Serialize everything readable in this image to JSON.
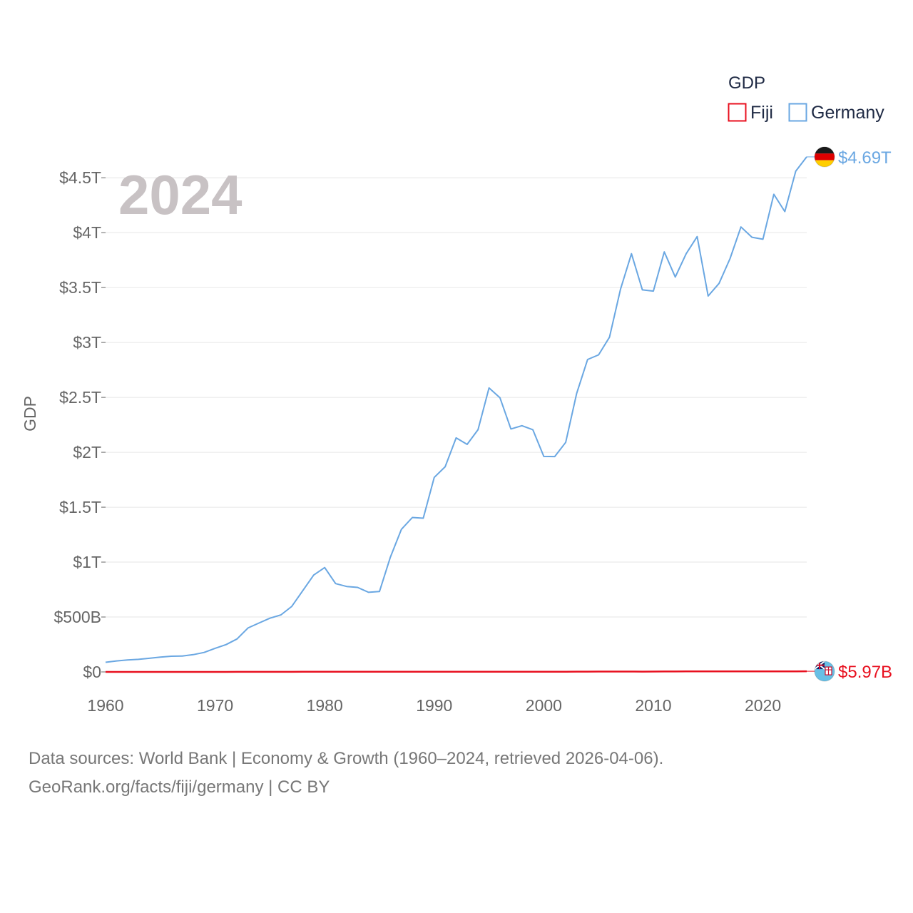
{
  "chart_data": {
    "type": "line",
    "ylabel": "GDP",
    "xlabel": "",
    "year_label": "2024",
    "xlim": [
      1960,
      2024
    ],
    "ylim": [
      0,
      4.8
    ],
    "x_ticks": [
      1960,
      1970,
      1980,
      1990,
      2000,
      2010,
      2020
    ],
    "y_ticks": [
      {
        "value": 0,
        "label": "$0"
      },
      {
        "value": 0.5,
        "label": "$500B"
      },
      {
        "value": 1,
        "label": "$1T"
      },
      {
        "value": 1.5,
        "label": "$1.5T"
      },
      {
        "value": 2,
        "label": "$2T"
      },
      {
        "value": 2.5,
        "label": "$2.5T"
      },
      {
        "value": 3,
        "label": "$3T"
      },
      {
        "value": 3.5,
        "label": "$3.5T"
      },
      {
        "value": 4,
        "label": "$4T"
      },
      {
        "value": 4.5,
        "label": "$4.5T"
      }
    ],
    "legend": {
      "title": "GDP",
      "placement": "top-right"
    },
    "grid": true,
    "value_units": "trillions USD",
    "x": [
      1960,
      1961,
      1962,
      1963,
      1964,
      1965,
      1966,
      1967,
      1968,
      1969,
      1970,
      1971,
      1972,
      1973,
      1974,
      1975,
      1976,
      1977,
      1978,
      1979,
      1980,
      1981,
      1982,
      1983,
      1984,
      1985,
      1986,
      1987,
      1988,
      1989,
      1990,
      1991,
      1992,
      1993,
      1994,
      1995,
      1996,
      1997,
      1998,
      1999,
      2000,
      2001,
      2002,
      2003,
      2004,
      2005,
      2006,
      2007,
      2008,
      2009,
      2010,
      2011,
      2012,
      2013,
      2014,
      2015,
      2016,
      2017,
      2018,
      2019,
      2020,
      2021,
      2022,
      2023,
      2024
    ],
    "series": [
      {
        "name": "Fiji",
        "color": "#e8101f",
        "end_label": "$5.97B",
        "flag": "fiji-flag",
        "values": [
          0.0001,
          0.0001,
          0.0001,
          0.0001,
          0.0002,
          0.0002,
          0.0002,
          0.0002,
          0.0002,
          0.0002,
          0.0002,
          0.0003,
          0.0004,
          0.0005,
          0.0007,
          0.0009,
          0.0009,
          0.0009,
          0.001,
          0.0011,
          0.0012,
          0.0012,
          0.0012,
          0.0011,
          0.0012,
          0.0011,
          0.0012,
          0.0011,
          0.0011,
          0.0012,
          0.0013,
          0.0014,
          0.0015,
          0.0016,
          0.0017,
          0.0019,
          0.0021,
          0.0021,
          0.0017,
          0.002,
          0.0017,
          0.0017,
          0.0019,
          0.0023,
          0.0027,
          0.003,
          0.0032,
          0.0034,
          0.0035,
          0.0029,
          0.0032,
          0.0037,
          0.0039,
          0.0043,
          0.0045,
          0.0045,
          0.0047,
          0.005,
          0.0055,
          0.0054,
          0.0045,
          0.0043,
          0.005,
          0.0054,
          0.00597
        ]
      },
      {
        "name": "Germany",
        "color": "#6aa7e2",
        "end_label": "$4.69T",
        "flag": "germany-flag",
        "values": [
          0.088,
          0.1,
          0.109,
          0.114,
          0.124,
          0.135,
          0.143,
          0.145,
          0.157,
          0.177,
          0.215,
          0.249,
          0.3,
          0.4,
          0.445,
          0.489,
          0.519,
          0.597,
          0.74,
          0.882,
          0.95,
          0.804,
          0.778,
          0.77,
          0.725,
          0.732,
          1.045,
          1.298,
          1.406,
          1.4,
          1.771,
          1.868,
          2.131,
          2.072,
          2.206,
          2.586,
          2.497,
          2.212,
          2.242,
          2.206,
          1.962,
          1.961,
          2.09,
          2.537,
          2.845,
          2.887,
          3.048,
          3.484,
          3.808,
          3.479,
          3.468,
          3.825,
          3.596,
          3.808,
          3.964,
          3.423,
          3.538,
          3.764,
          4.052,
          3.958,
          3.94,
          4.349,
          4.192,
          4.56,
          4.69
        ]
      }
    ]
  },
  "footer": {
    "line1": "Data sources: World Bank | Economy & Growth (1960–2024, retrieved 2026-04-06).",
    "line2": "GeoRank.org/facts/fiji/germany | CC BY"
  }
}
